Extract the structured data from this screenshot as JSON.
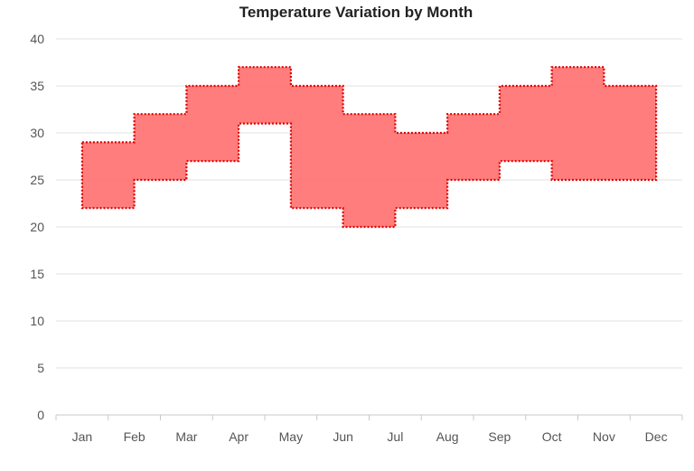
{
  "chart_data": {
    "type": "area",
    "subtype": "step-range",
    "title": "Temperature Variation by Month",
    "xlabel": "",
    "ylabel": "",
    "categories": [
      "Jan",
      "Feb",
      "Mar",
      "Apr",
      "May",
      "Jun",
      "Jul",
      "Aug",
      "Sep",
      "Oct",
      "Nov",
      "Dec"
    ],
    "series": [
      {
        "low": [
          22,
          25,
          27,
          31,
          22,
          20,
          22,
          25,
          27,
          25,
          25,
          25
        ],
        "high": [
          29,
          32,
          35,
          37,
          35,
          32,
          30,
          32,
          35,
          37,
          35,
          35
        ]
      }
    ],
    "ylim": [
      0,
      40
    ],
    "yticks": [
      0,
      5,
      10,
      15,
      20,
      25,
      30,
      35,
      40
    ],
    "grid": true,
    "legend": "none",
    "colors": {
      "fill": "#ff6b6b",
      "border": "#e00000",
      "grid": "#e2e2e2",
      "axis": "#c8c8c8",
      "text": "#555555"
    }
  }
}
